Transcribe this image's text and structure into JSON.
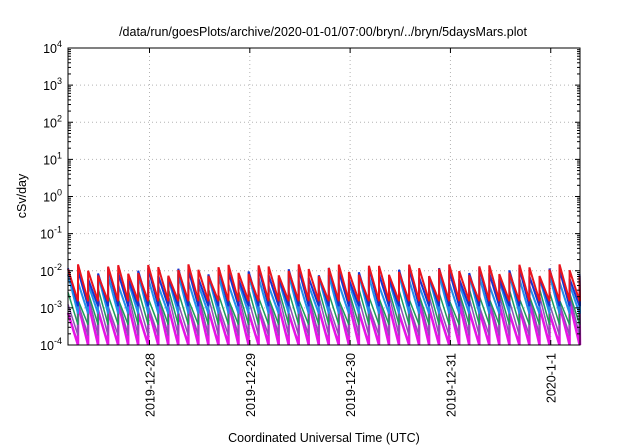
{
  "chart_data": {
    "type": "line",
    "title": "/data/run/goesPlots/archive/2020-01-01/07:00/bryn/../bryn/5daysMars.plot",
    "xlabel": "Coordinated Universal Time (UTC)",
    "ylabel": "cSv/day",
    "yscale": "log",
    "ylim": [
      0.0001,
      10000
    ],
    "xlim": [
      "2019-12-27T04:30",
      "2020-01-01T07:00"
    ],
    "grid": true,
    "y_ticks": [
      {
        "exp": "-4"
      },
      {
        "exp": "-3"
      },
      {
        "exp": "-2"
      },
      {
        "exp": "-1"
      },
      {
        "exp": "0"
      },
      {
        "exp": "1"
      },
      {
        "exp": "2"
      },
      {
        "exp": "3"
      },
      {
        "exp": "4"
      }
    ],
    "y_tick_base": "10",
    "x_ticks": [
      {
        "label": "2019-12-28",
        "t": "2019-12-28T00:00"
      },
      {
        "label": "2019-12-29",
        "t": "2019-12-29T00:00"
      },
      {
        "label": "2019-12-30",
        "t": "2019-12-30T00:00"
      },
      {
        "label": "2019-12-31",
        "t": "2019-12-31T00:00"
      },
      {
        "label": "2020-1-1",
        "t": "2020-01-01T00:00"
      }
    ],
    "sawtooth": {
      "start": "2019-12-27T04:30",
      "end": "2020-01-01T07:00",
      "period_hours": 2.4
    },
    "series": [
      {
        "color": "#e8141e",
        "peak": 0.011,
        "trough": 0.0015,
        "width": 2
      },
      {
        "color": "#1434d2",
        "peak": 0.009,
        "trough": 0.0011,
        "width": 2
      },
      {
        "color": "#1e90e8",
        "peak": 0.006,
        "trough": 0.0007,
        "width": 2
      },
      {
        "color": "#1e9c5a",
        "peak": 0.0025,
        "trough": 0.00035,
        "width": 1.5
      },
      {
        "color": "#8c50b4",
        "peak": 0.0017,
        "trough": 0.00018,
        "width": 1.5
      },
      {
        "color": "#e614e6",
        "peak": 0.0011,
        "trough": 0.0001,
        "width": 2.5
      }
    ]
  }
}
